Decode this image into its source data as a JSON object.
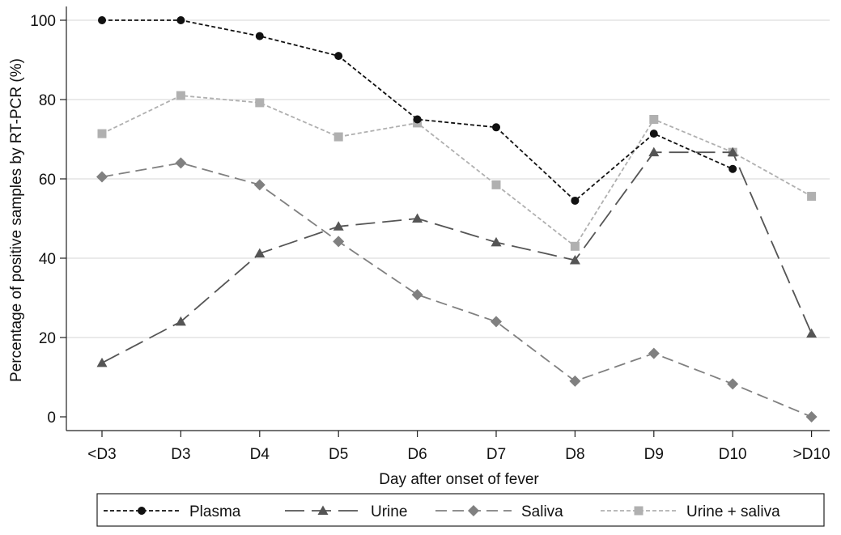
{
  "chart_data": {
    "type": "line",
    "title": "",
    "xlabel": "Day after onset of fever",
    "ylabel": "Percentage of positive samples by RT-PCR (%)",
    "ylim": [
      0,
      100
    ],
    "yticks": [
      0,
      20,
      40,
      60,
      80,
      100
    ],
    "grid": true,
    "legend_position": "bottom",
    "categories": [
      "<D3",
      "D3",
      "D4",
      "D5",
      "D6",
      "D7",
      "D8",
      "D9",
      "D10",
      ">D10"
    ],
    "series": [
      {
        "name": "Plasma",
        "values": [
          100,
          100,
          96,
          91,
          75,
          73,
          54.5,
          71.4,
          62.5,
          null
        ],
        "color": "#111111",
        "marker": "circle",
        "dash": "short"
      },
      {
        "name": "Urine",
        "values": [
          13.6,
          24,
          41.2,
          48,
          50,
          44,
          39.5,
          66.7,
          66.7,
          21
        ],
        "color": "#555555",
        "marker": "triangle",
        "dash": "long"
      },
      {
        "name": "Saliva",
        "values": [
          60.5,
          64,
          58.5,
          44.2,
          30.8,
          24,
          9,
          16,
          8.3,
          0
        ],
        "color": "#808080",
        "marker": "diamond",
        "dash": "medium"
      },
      {
        "name": "Urine + saliva",
        "values": [
          71.4,
          81,
          79.2,
          70.6,
          74.1,
          58.5,
          43,
          75,
          66.7,
          55.6
        ],
        "color": "#b0b0b0",
        "marker": "square",
        "dash": "short"
      }
    ]
  }
}
